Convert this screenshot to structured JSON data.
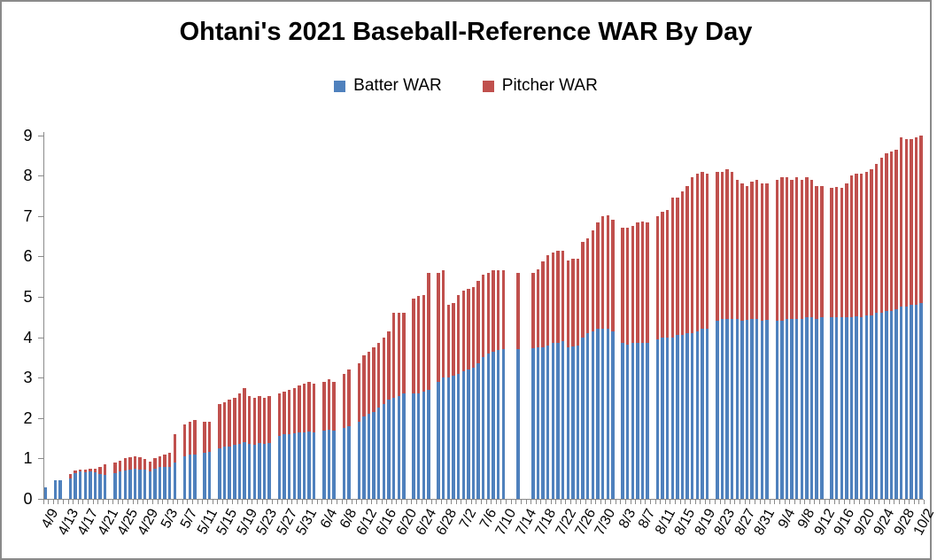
{
  "title": "Ohtani's 2021 Baseball-Reference WAR By Day",
  "legend": {
    "batter_label": "Batter WAR",
    "pitcher_label": "Pitcher WAR"
  },
  "colors": {
    "batter": "#4F81BD",
    "pitcher": "#C0504D",
    "axis": "#8a8a8a",
    "text": "#000000",
    "border": "#8a8a8a"
  },
  "chart_data": {
    "type": "bar",
    "stacked": true,
    "title": "Ohtani's 2021 Baseball-Reference WAR By Day",
    "xlabel": "",
    "ylabel": "",
    "ylim": [
      0,
      9
    ],
    "yticks": [
      0,
      1,
      2,
      3,
      4,
      5,
      6,
      7,
      8,
      9
    ],
    "grid": false,
    "legend_position": "top",
    "x_label_every": 4,
    "categories": [
      "4/9",
      "4/10",
      "4/11",
      "4/12",
      "4/13",
      "4/14",
      "4/15",
      "4/16",
      "4/17",
      "4/18",
      "4/19",
      "4/20",
      "4/21",
      "4/22",
      "4/23",
      "4/24",
      "4/25",
      "4/26",
      "4/27",
      "4/28",
      "4/29",
      "4/30",
      "5/1",
      "5/2",
      "5/3",
      "5/4",
      "5/5",
      "5/6",
      "5/7",
      "5/8",
      "5/9",
      "5/10",
      "5/11",
      "5/12",
      "5/13",
      "5/14",
      "5/15",
      "5/16",
      "5/17",
      "5/18",
      "5/19",
      "5/20",
      "5/21",
      "5/22",
      "5/23",
      "5/24",
      "5/25",
      "5/26",
      "5/27",
      "5/28",
      "5/29",
      "5/30",
      "5/31",
      "6/1",
      "6/2",
      "6/3",
      "6/4",
      "6/5",
      "6/6",
      "6/7",
      "6/8",
      "6/9",
      "6/10",
      "6/11",
      "6/12",
      "6/13",
      "6/14",
      "6/15",
      "6/16",
      "6/17",
      "6/18",
      "6/19",
      "6/20",
      "6/21",
      "6/22",
      "6/23",
      "6/24",
      "6/25",
      "6/26",
      "6/27",
      "6/28",
      "6/29",
      "6/30",
      "7/1",
      "7/2",
      "7/3",
      "7/4",
      "7/5",
      "7/6",
      "7/7",
      "7/8",
      "7/9",
      "7/10",
      "7/11",
      "7/12",
      "7/13",
      "7/14",
      "7/15",
      "7/16",
      "7/17",
      "7/18",
      "7/19",
      "7/20",
      "7/21",
      "7/22",
      "7/23",
      "7/24",
      "7/25",
      "7/26",
      "7/27",
      "7/28",
      "7/29",
      "7/30",
      "7/31",
      "8/1",
      "8/2",
      "8/3",
      "8/4",
      "8/5",
      "8/6",
      "8/7",
      "8/8",
      "8/9",
      "8/10",
      "8/11",
      "8/12",
      "8/13",
      "8/14",
      "8/15",
      "8/16",
      "8/17",
      "8/18",
      "8/19",
      "8/20",
      "8/21",
      "8/22",
      "8/23",
      "8/24",
      "8/25",
      "8/26",
      "8/27",
      "8/28",
      "8/29",
      "8/30",
      "8/31",
      "9/1",
      "9/2",
      "9/3",
      "9/4",
      "9/5",
      "9/6",
      "9/7",
      "9/8",
      "9/9",
      "9/10",
      "9/11",
      "9/12",
      "9/13",
      "9/14",
      "9/15",
      "9/16",
      "9/17",
      "9/18",
      "9/19",
      "9/20",
      "9/21",
      "9/22",
      "9/23",
      "9/24",
      "9/25",
      "9/26",
      "9/27",
      "9/28",
      "9/29",
      "9/30",
      "10/1",
      "10/2"
    ],
    "series": [
      {
        "name": "Batter WAR",
        "color": "#4F81BD",
        "values": [
          0.28,
          null,
          0.45,
          0.45,
          null,
          0.5,
          0.63,
          0.68,
          0.66,
          0.68,
          0.65,
          0.62,
          0.6,
          null,
          0.63,
          0.68,
          0.7,
          0.73,
          0.75,
          0.73,
          0.73,
          0.68,
          0.75,
          0.78,
          0.8,
          0.8,
          0.9,
          null,
          1.05,
          1.1,
          1.1,
          null,
          1.15,
          1.17,
          null,
          1.25,
          1.3,
          1.3,
          1.33,
          1.35,
          1.4,
          1.35,
          1.33,
          1.38,
          1.36,
          1.38,
          null,
          1.55,
          1.6,
          1.6,
          1.63,
          1.65,
          1.65,
          1.67,
          1.65,
          null,
          1.68,
          1.7,
          1.68,
          null,
          1.75,
          1.8,
          null,
          1.9,
          2.05,
          2.1,
          2.15,
          2.25,
          2.35,
          2.45,
          2.5,
          2.55,
          2.6,
          null,
          2.6,
          2.62,
          2.65,
          2.7,
          null,
          2.9,
          3.0,
          3.0,
          3.05,
          3.1,
          3.15,
          3.2,
          3.25,
          3.35,
          3.5,
          3.6,
          3.65,
          3.68,
          3.7,
          null,
          null,
          3.7,
          null,
          null,
          3.72,
          3.75,
          3.75,
          3.8,
          3.85,
          3.85,
          3.9,
          3.75,
          3.78,
          3.8,
          4.0,
          4.1,
          4.15,
          4.2,
          4.2,
          4.2,
          4.15,
          null,
          3.85,
          3.82,
          3.85,
          3.85,
          3.87,
          3.85,
          null,
          3.95,
          4.0,
          4.0,
          4.0,
          4.05,
          4.05,
          4.1,
          4.1,
          4.15,
          4.2,
          4.2,
          null,
          4.4,
          4.45,
          4.45,
          4.45,
          4.45,
          4.4,
          4.42,
          4.45,
          4.45,
          4.4,
          4.42,
          null,
          4.4,
          4.4,
          4.45,
          4.45,
          4.45,
          4.45,
          4.5,
          4.5,
          4.45,
          4.5,
          null,
          4.5,
          4.5,
          4.5,
          4.5,
          4.5,
          4.52,
          4.5,
          4.55,
          4.55,
          4.6,
          4.6,
          4.65,
          4.65,
          4.7,
          4.75,
          4.75,
          4.8,
          4.8,
          4.85
        ]
      },
      {
        "name": "Pitcher WAR",
        "color": "#C0504D",
        "values": [
          0,
          null,
          0,
          0,
          null,
          0.12,
          0.07,
          0.05,
          0.06,
          0.06,
          0.1,
          0.16,
          0.25,
          null,
          0.27,
          0.27,
          0.3,
          0.3,
          0.3,
          0.29,
          0.25,
          0.24,
          0.25,
          0.27,
          0.3,
          0.35,
          0.7,
          null,
          0.8,
          0.8,
          0.85,
          null,
          0.75,
          0.73,
          null,
          1.1,
          1.1,
          1.15,
          1.17,
          1.25,
          1.35,
          1.2,
          1.17,
          1.17,
          1.14,
          1.17,
          null,
          1.05,
          1.05,
          1.1,
          1.12,
          1.15,
          1.2,
          1.23,
          1.2,
          null,
          1.22,
          1.25,
          1.22,
          null,
          1.35,
          1.4,
          null,
          1.45,
          1.5,
          1.55,
          1.6,
          1.6,
          1.65,
          1.7,
          2.1,
          2.05,
          2.0,
          null,
          2.35,
          2.4,
          2.4,
          2.9,
          null,
          2.7,
          2.65,
          1.8,
          1.8,
          1.95,
          2.0,
          2.0,
          2.0,
          2.05,
          2.05,
          2.0,
          2.0,
          1.97,
          1.95,
          null,
          null,
          1.9,
          null,
          null,
          1.88,
          1.92,
          2.13,
          2.24,
          2.25,
          2.3,
          2.25,
          2.15,
          2.17,
          2.15,
          2.35,
          2.35,
          2.5,
          2.65,
          2.8,
          2.82,
          2.75,
          null,
          2.85,
          2.9,
          2.9,
          3.0,
          3.0,
          3.0,
          null,
          3.05,
          3.1,
          3.15,
          3.45,
          3.4,
          3.55,
          3.65,
          3.85,
          3.9,
          3.9,
          3.85,
          null,
          3.7,
          3.65,
          3.7,
          3.65,
          3.45,
          3.4,
          3.33,
          3.4,
          3.45,
          3.4,
          3.38,
          null,
          3.5,
          3.55,
          3.5,
          3.45,
          3.5,
          3.45,
          3.45,
          3.4,
          3.3,
          3.25,
          null,
          3.2,
          3.22,
          3.2,
          3.3,
          3.5,
          3.53,
          3.55,
          3.55,
          3.6,
          3.7,
          3.85,
          3.9,
          3.95,
          3.95,
          4.2,
          4.15,
          4.1,
          4.15,
          4.15
        ]
      }
    ]
  }
}
